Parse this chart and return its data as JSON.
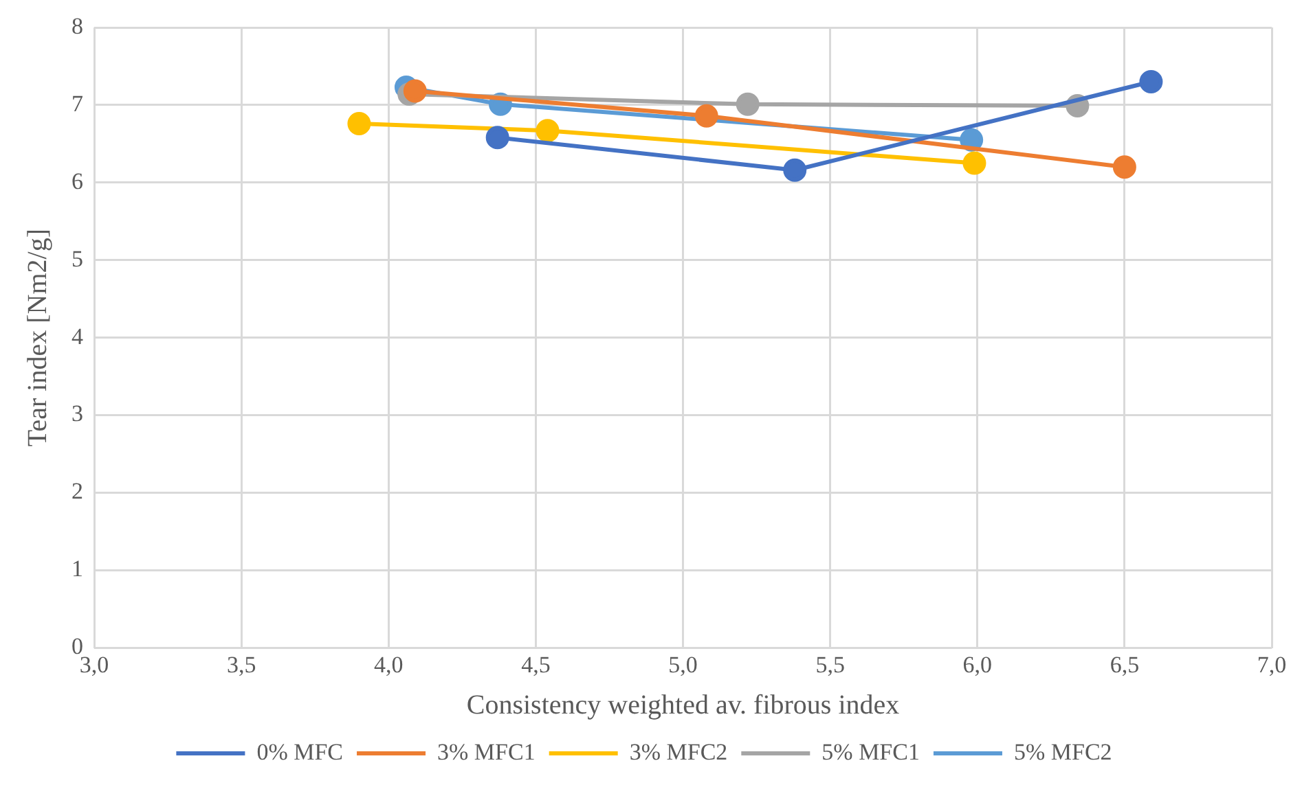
{
  "chart_data": {
    "type": "line",
    "xlabel": "Consistency weighted av. fibrous index",
    "ylabel": "Tear index [Nm2/g]",
    "xlim": [
      3,
      7
    ],
    "xticks": [
      {
        "value": 3,
        "label": "3,0"
      },
      {
        "value": 3.5,
        "label": "3,5"
      },
      {
        "value": 4,
        "label": "4,0"
      },
      {
        "value": 4.5,
        "label": "4,5"
      },
      {
        "value": 5,
        "label": "5,0"
      },
      {
        "value": 5.5,
        "label": "5,5"
      },
      {
        "value": 6,
        "label": "6,0"
      },
      {
        "value": 6.5,
        "label": "6,5"
      },
      {
        "value": 7,
        "label": "7,0"
      }
    ],
    "ylim": [
      0,
      8
    ],
    "yticks": [
      0,
      1,
      2,
      3,
      4,
      5,
      6,
      7,
      8
    ],
    "grid": true,
    "legend": "bottom",
    "marker": "circle",
    "line_style": "solid",
    "series": [
      {
        "name": "0% MFC",
        "color": "#4472c4",
        "x": [
          4.37,
          5.38,
          6.59
        ],
        "values": [
          6.58,
          6.16,
          7.3
        ]
      },
      {
        "name": "3% MFC1",
        "color": "#ed7d31",
        "x": [
          4.09,
          5.08,
          6.5
        ],
        "values": [
          7.18,
          6.86,
          6.2
        ]
      },
      {
        "name": "3% MFC2",
        "color": "#ffc000",
        "x": [
          3.9,
          4.54,
          5.99
        ],
        "values": [
          6.76,
          6.67,
          6.25
        ]
      },
      {
        "name": "5% MFC1",
        "color": "#a5a5a5",
        "x": [
          4.07,
          5.22,
          6.34
        ],
        "values": [
          7.14,
          7.01,
          6.99
        ]
      },
      {
        "name": "5% MFC2",
        "color": "#5b9bd5",
        "x": [
          4.06,
          4.38,
          5.98
        ],
        "values": [
          7.23,
          7.01,
          6.55
        ]
      }
    ]
  }
}
